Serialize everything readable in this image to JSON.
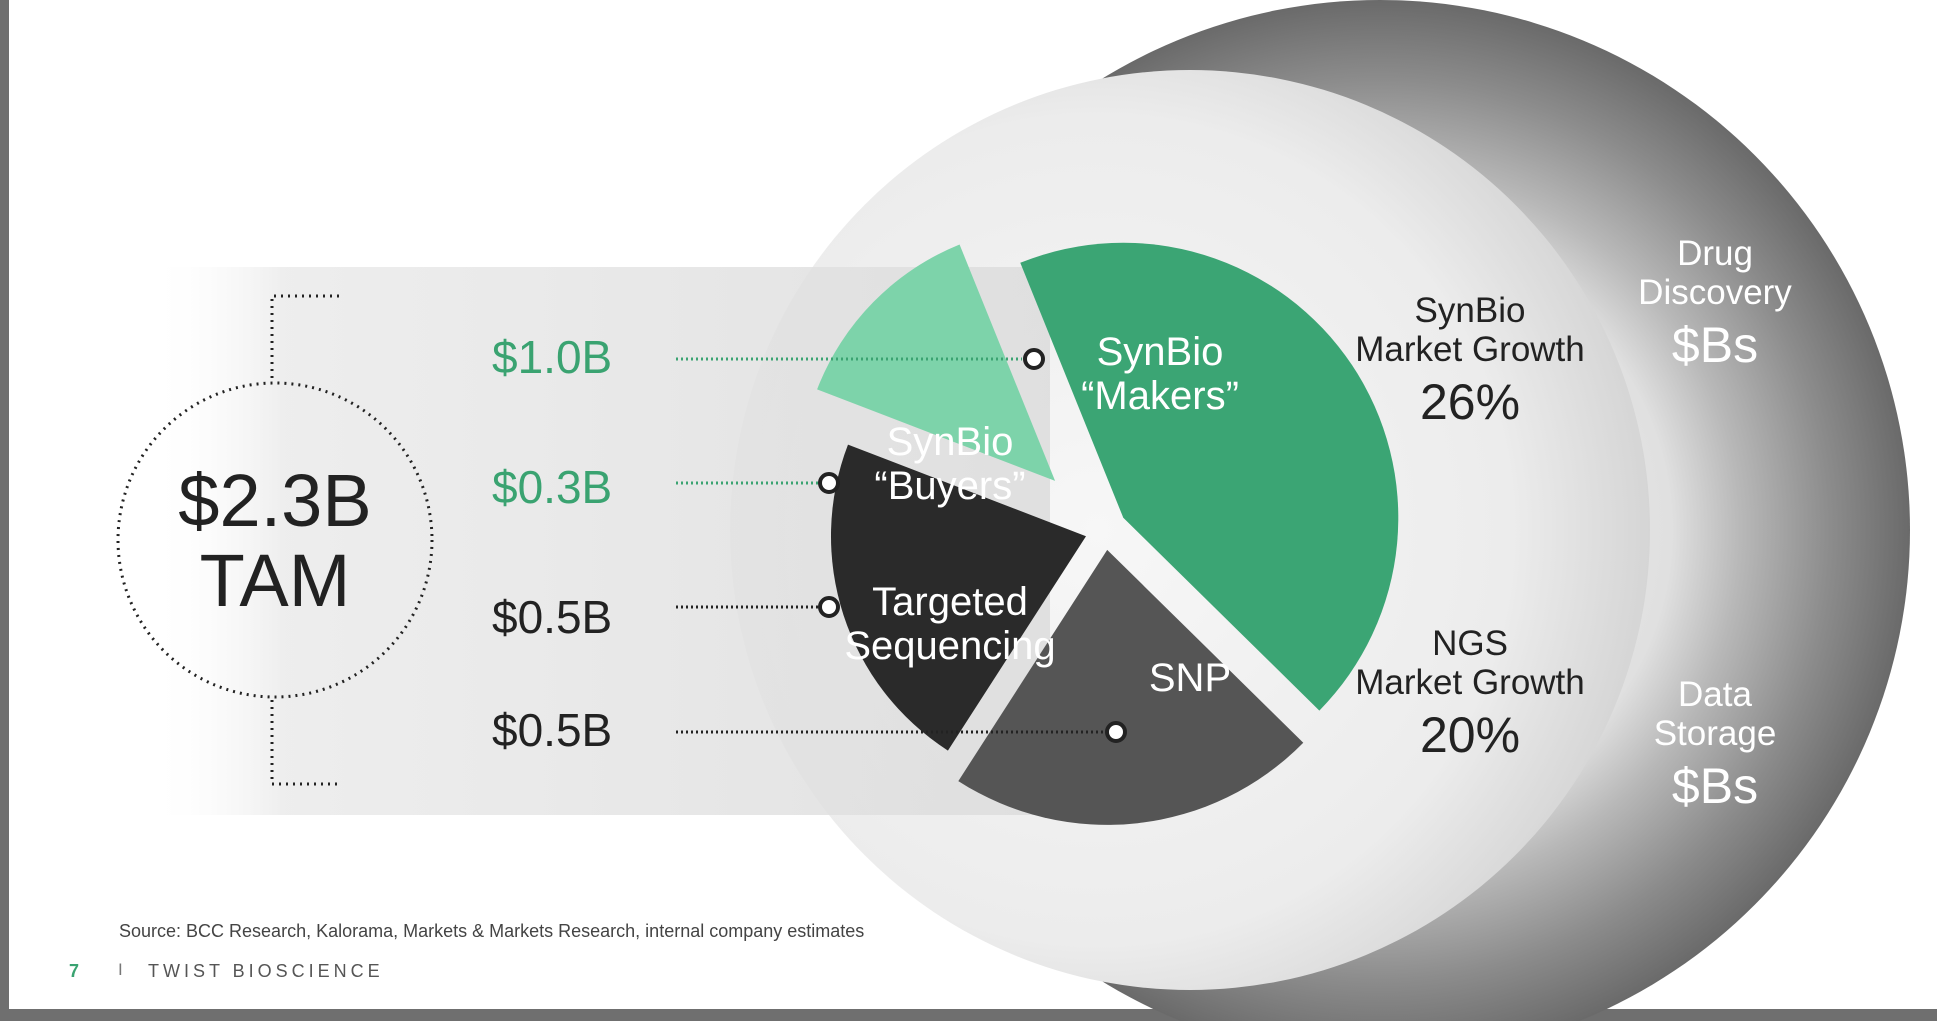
{
  "tam": {
    "value": "$2.3B",
    "label": "TAM"
  },
  "chart_data": {
    "type": "pie",
    "title": "",
    "slices": [
      {
        "label": "SynBio “Makers”",
        "value": 1.0,
        "value_label": "$1.0B",
        "color": "#3ba574"
      },
      {
        "label": "SNP",
        "value": 0.5,
        "value_label": "$0.5B",
        "color": "#555555"
      },
      {
        "label": "Targeted Sequencing",
        "value": 0.5,
        "value_label": "$0.5B",
        "color": "#2a2a2a"
      },
      {
        "label": "SynBio “Buyers”",
        "value": 0.3,
        "value_label": "$0.3B",
        "color": "#7dd3aa"
      }
    ],
    "total_label": "$2.3B TAM"
  },
  "slices": {
    "makers": {
      "line1": "SynBio",
      "line2": "“Makers”",
      "value": "$1.0B"
    },
    "buyers": {
      "line1": "SynBio",
      "line2": "“Buyers”",
      "value": "$0.3B"
    },
    "targeted": {
      "line1": "Targeted",
      "line2": "Sequencing",
      "value": "$0.5B"
    },
    "snp": {
      "line1": "SNP",
      "value": "$0.5B"
    }
  },
  "inner_ring": {
    "synbio_growth": {
      "line1": "SynBio",
      "line2": "Market Growth",
      "value": "26%"
    },
    "ngs_growth": {
      "line1": "NGS",
      "line2": "Market Growth",
      "value": "20%"
    }
  },
  "outer_ring": {
    "drug_discovery": {
      "line1": "Drug",
      "line2": "Discovery",
      "value": "$Bs"
    },
    "data_storage": {
      "line1": "Data",
      "line2": "Storage",
      "value": "$Bs"
    }
  },
  "colors": {
    "accent_green": "#3ba574",
    "light_green": "#7dd3aa",
    "dark_slice": "#2a2a2a",
    "gray_slice": "#555555",
    "value_green": "#3aa371"
  },
  "footer": {
    "source": "Source: BCC Research, Kalorama, Markets & Markets Research, internal company estimates",
    "page_number": "7",
    "separator": "I",
    "company": "TWIST BIOSCIENCE"
  }
}
